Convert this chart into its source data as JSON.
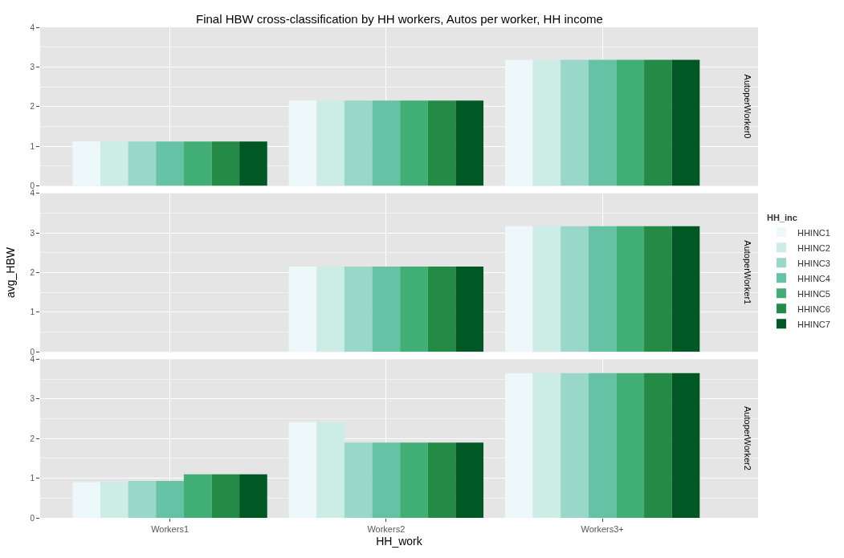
{
  "chart_data": [
    {
      "type": "bar",
      "title": "Final HBW cross-classification by HH workers, Autos per worker, HH income",
      "subtitle": "AutoperWorker0",
      "categories": [
        "Workers1",
        "Workers2",
        "Workers3+"
      ],
      "ylim": [
        0,
        4
      ],
      "yticks": [
        0,
        1,
        2,
        3,
        4
      ],
      "grid": true,
      "tick_labels": "y",
      "series": [
        {
          "color": "#edf8fb",
          "values": [
            1.12,
            2.15,
            3.18
          ]
        },
        {
          "color": "#ccece6",
          "values": [
            1.12,
            2.15,
            3.18
          ]
        },
        {
          "color": "#99d8c9",
          "values": [
            1.12,
            2.15,
            3.18
          ]
        },
        {
          "color": "#66c2a4",
          "values": [
            1.12,
            2.15,
            3.18
          ]
        },
        {
          "color": "#41ae76",
          "values": [
            1.12,
            2.15,
            3.18
          ]
        },
        {
          "color": "#238b45",
          "values": [
            1.12,
            2.15,
            3.18
          ]
        },
        {
          "color": "#005824",
          "values": [
            1.12,
            2.15,
            3.18
          ]
        }
      ]
    },
    {
      "type": "bar",
      "subtitle": "AutoperWorker1",
      "ylabel": "avg_HBW",
      "legend_title": "HH_inc",
      "legend": "right",
      "categories": [
        "Workers1",
        "Workers2",
        "Workers3+"
      ],
      "ylim": [
        0,
        4
      ],
      "yticks": [
        0,
        1,
        2,
        3,
        4
      ],
      "grid": true,
      "tick_labels": "y",
      "series": [
        {
          "name": "HHINC1",
          "color": "#edf8fb",
          "values": [
            null,
            2.15,
            3.17
          ]
        },
        {
          "name": "HHINC2",
          "color": "#ccece6",
          "values": [
            null,
            2.15,
            3.17
          ]
        },
        {
          "name": "HHINC3",
          "color": "#99d8c9",
          "values": [
            null,
            2.15,
            3.17
          ]
        },
        {
          "name": "HHINC4",
          "color": "#66c2a4",
          "values": [
            null,
            2.15,
            3.17
          ]
        },
        {
          "name": "HHINC5",
          "color": "#41ae76",
          "values": [
            null,
            2.15,
            3.17
          ]
        },
        {
          "name": "HHINC6",
          "color": "#238b45",
          "values": [
            null,
            2.15,
            3.17
          ]
        },
        {
          "name": "HHINC7",
          "color": "#005824",
          "values": [
            null,
            2.15,
            3.17
          ]
        }
      ]
    },
    {
      "type": "bar",
      "subtitle": "AutoperWorker2",
      "xlabel": "HH_work",
      "categories": [
        "Workers1",
        "Workers2",
        "Workers3+"
      ],
      "ylim": [
        0,
        4
      ],
      "yticks": [
        0,
        1,
        2,
        3,
        4
      ],
      "grid": true,
      "series": [
        {
          "color": "#edf8fb",
          "values": [
            0.9,
            2.42,
            3.65
          ]
        },
        {
          "color": "#ccece6",
          "values": [
            0.9,
            2.42,
            3.65
          ]
        },
        {
          "color": "#99d8c9",
          "values": [
            0.93,
            1.9,
            3.65
          ]
        },
        {
          "color": "#66c2a4",
          "values": [
            0.93,
            1.9,
            3.65
          ]
        },
        {
          "color": "#41ae76",
          "values": [
            1.1,
            1.9,
            3.65
          ]
        },
        {
          "color": "#238b45",
          "values": [
            1.1,
            1.9,
            3.65
          ]
        },
        {
          "color": "#005824",
          "values": [
            1.1,
            1.9,
            3.65
          ]
        }
      ]
    }
  ]
}
